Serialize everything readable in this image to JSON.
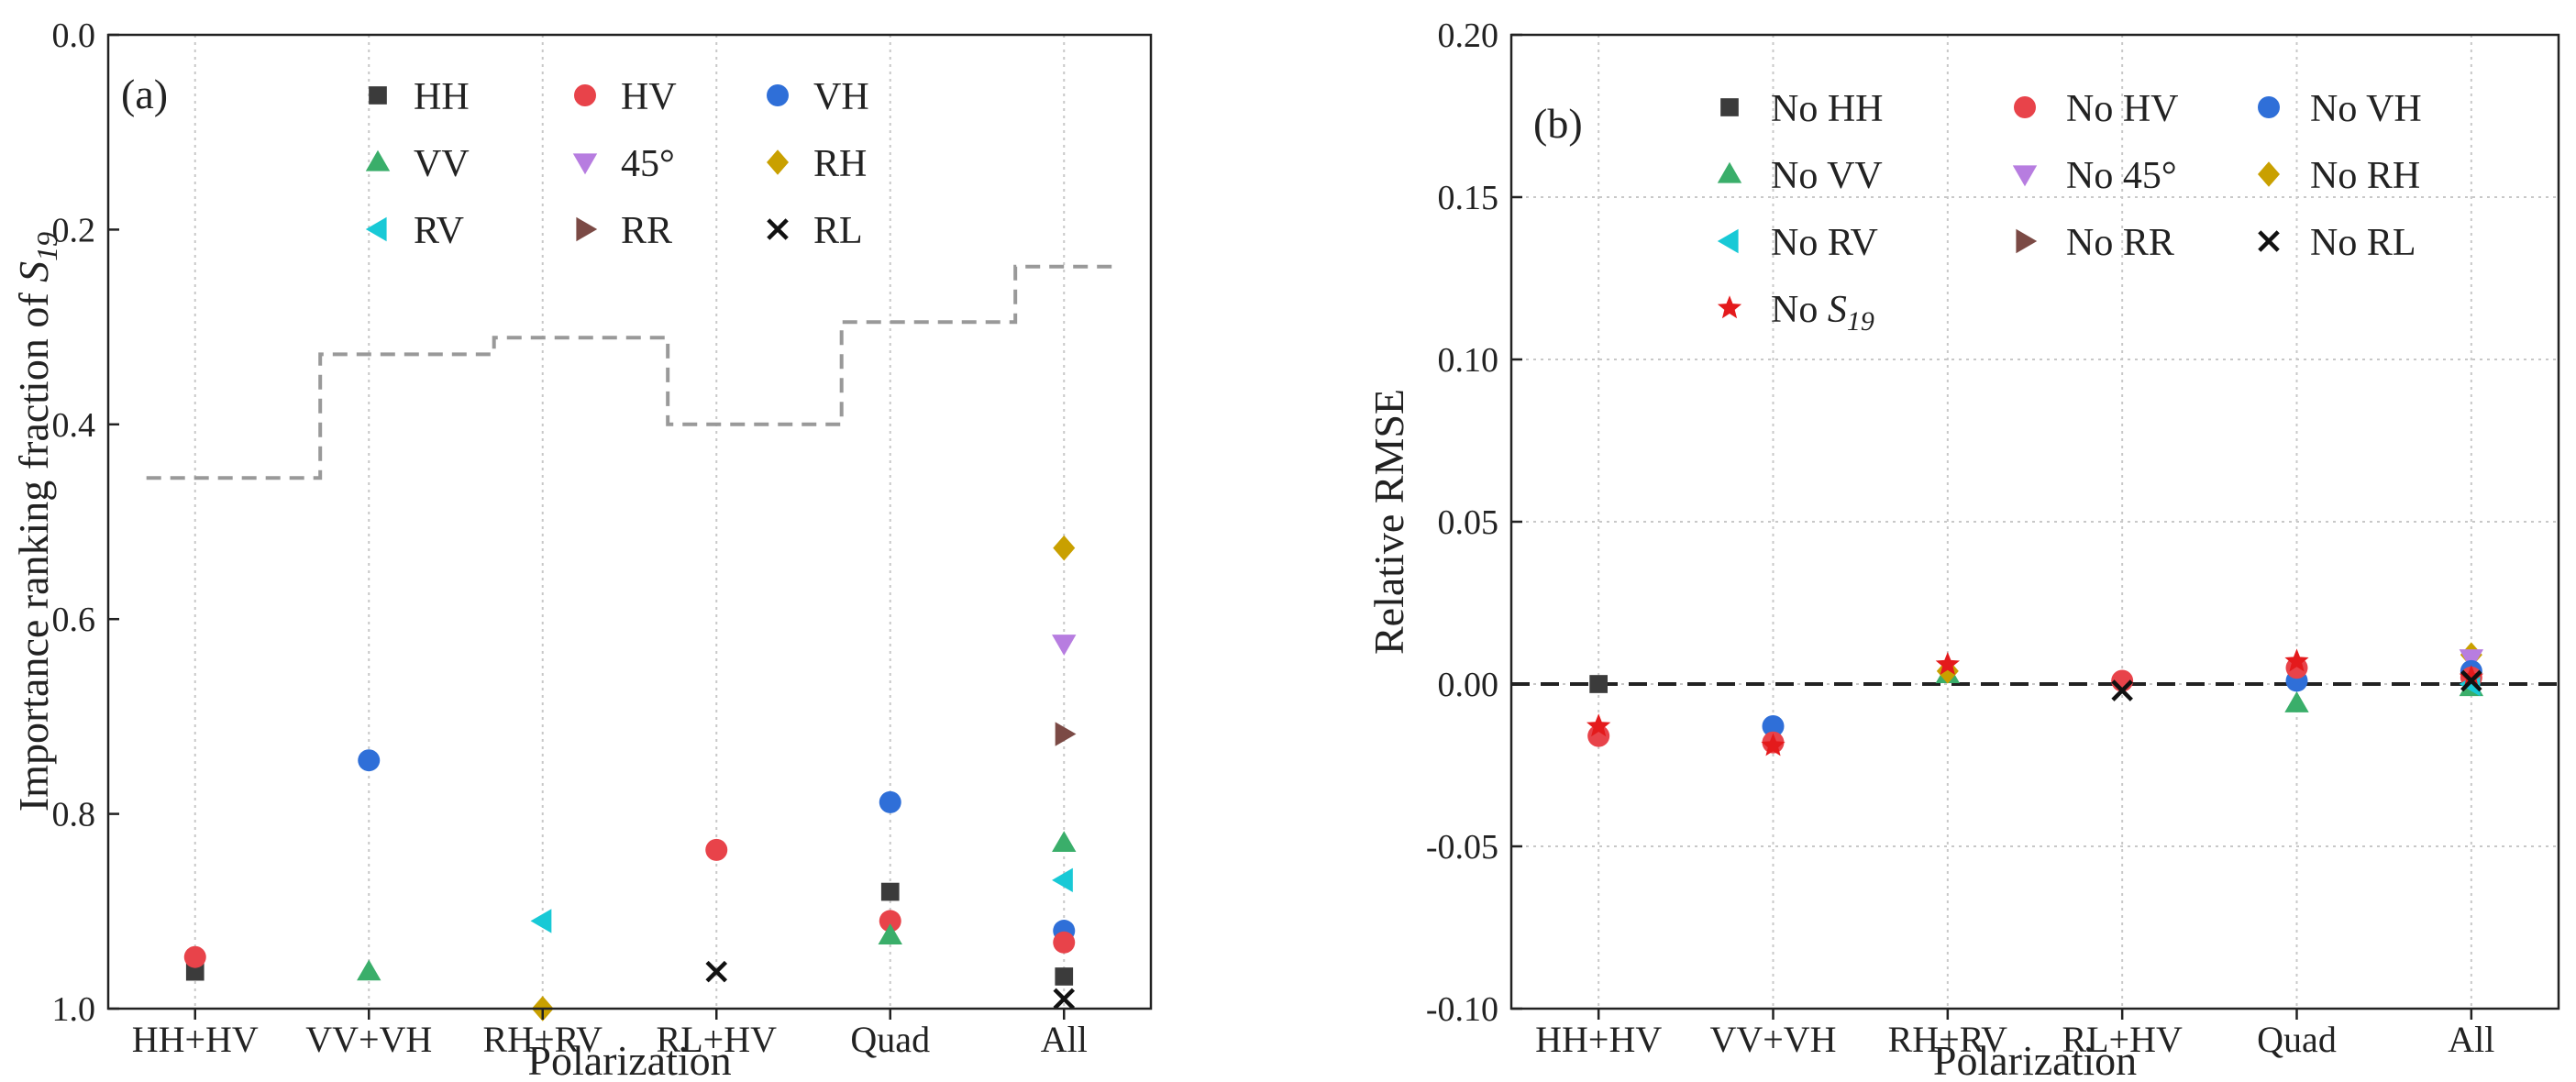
{
  "colors": {
    "HH": "#3b3b3b",
    "HV": "#e8434a",
    "VH": "#2f6fd8",
    "VV": "#3aae6a",
    "45": "#b77de0",
    "RH": "#c9a000",
    "RV": "#18c9d6",
    "RR": "#7b4a45",
    "RL": "#111111",
    "S19": "#e41a1c",
    "step": "#999999",
    "zero": "#222222",
    "grid": "#c8c8c8"
  },
  "chart_data": [
    {
      "type": "scatter",
      "panel_label": "(a)",
      "xlabel": "Polarization",
      "ylabel_main": "Importance ranking fraction of ",
      "ylabel_sym": "S",
      "ylabel_sub": "19",
      "categories": [
        "HH+HV",
        "VV+VH",
        "RH+RV",
        "RL+HV",
        "Quad",
        "All"
      ],
      "ylim": [
        1.0,
        0.0
      ],
      "y_inverted": true,
      "yticks": [
        0.0,
        0.2,
        0.4,
        0.6,
        0.8,
        1.0
      ],
      "ytick_labels": [
        "0.0",
        "0.2",
        "0.4",
        "0.6",
        "0.8",
        "1.0"
      ],
      "grid": "vertical dotted",
      "legend_position": "top-left",
      "legend": [
        {
          "key": "HH",
          "label": "HH",
          "marker": "square"
        },
        {
          "key": "HV",
          "label": "HV",
          "marker": "circle"
        },
        {
          "key": "VH",
          "label": "VH",
          "marker": "circle"
        },
        {
          "key": "VV",
          "label": "VV",
          "marker": "triangle-up"
        },
        {
          "key": "45",
          "label": "45°",
          "marker": "triangle-down"
        },
        {
          "key": "RH",
          "label": "RH",
          "marker": "diamond"
        },
        {
          "key": "RV",
          "label": "RV",
          "marker": "triangle-left"
        },
        {
          "key": "RR",
          "label": "RR",
          "marker": "triangle-right"
        },
        {
          "key": "RL",
          "label": "RL",
          "marker": "x"
        }
      ],
      "points": [
        {
          "key": "HH",
          "cat": 0,
          "y": 0.962
        },
        {
          "key": "HV",
          "cat": 0,
          "y": 0.947
        },
        {
          "key": "VV",
          "cat": 1,
          "y": 0.962
        },
        {
          "key": "VH",
          "cat": 1,
          "y": 0.745
        },
        {
          "key": "RV",
          "cat": 2,
          "y": 0.91
        },
        {
          "key": "RH",
          "cat": 2,
          "y": 1.0
        },
        {
          "key": "HV",
          "cat": 3,
          "y": 0.837
        },
        {
          "key": "RL",
          "cat": 3,
          "y": 0.962
        },
        {
          "key": "VH",
          "cat": 4,
          "y": 0.788
        },
        {
          "key": "HH",
          "cat": 4,
          "y": 0.88
        },
        {
          "key": "HV",
          "cat": 4,
          "y": 0.91
        },
        {
          "key": "VV",
          "cat": 4,
          "y": 0.925
        },
        {
          "key": "RH",
          "cat": 5,
          "y": 0.527
        },
        {
          "key": "45",
          "cat": 5,
          "y": 0.625
        },
        {
          "key": "RR",
          "cat": 5,
          "y": 0.718
        },
        {
          "key": "VV",
          "cat": 5,
          "y": 0.83
        },
        {
          "key": "RV",
          "cat": 5,
          "y": 0.868
        },
        {
          "key": "VH",
          "cat": 5,
          "y": 0.92
        },
        {
          "key": "HV",
          "cat": 5,
          "y": 0.932
        },
        {
          "key": "HH",
          "cat": 5,
          "y": 0.967
        },
        {
          "key": "RL",
          "cat": 5,
          "y": 0.99
        }
      ],
      "step_line": [
        {
          "cat": 0,
          "y": 0.455
        },
        {
          "cat": 1,
          "y": 0.328
        },
        {
          "cat": 2,
          "y": 0.311
        },
        {
          "cat": 3,
          "y": 0.4
        },
        {
          "cat": 4,
          "y": 0.295
        },
        {
          "cat": 5,
          "y": 0.238
        }
      ]
    },
    {
      "type": "scatter",
      "panel_label": "(b)",
      "xlabel": "Polarization",
      "ylabel": "Relative RMSE",
      "categories": [
        "HH+HV",
        "VV+VH",
        "RH+RV",
        "RL+HV",
        "Quad",
        "All"
      ],
      "ylim": [
        -0.1,
        0.2
      ],
      "yticks": [
        -0.1,
        -0.05,
        0.0,
        0.05,
        0.1,
        0.15,
        0.2
      ],
      "ytick_labels": [
        "-0.10",
        "-0.05",
        "0.00",
        "0.05",
        "0.10",
        "0.15",
        "0.20"
      ],
      "grid": "dotted",
      "reference_line": 0.0,
      "legend_position": "top-left",
      "legend": [
        {
          "key": "HH",
          "label": "No HH",
          "marker": "square"
        },
        {
          "key": "HV",
          "label": "No HV",
          "marker": "circle"
        },
        {
          "key": "VH",
          "label": "No VH",
          "marker": "circle"
        },
        {
          "key": "VV",
          "label": "No VV",
          "marker": "triangle-up"
        },
        {
          "key": "45",
          "label": "No 45°",
          "marker": "triangle-down"
        },
        {
          "key": "RH",
          "label": "No RH",
          "marker": "diamond"
        },
        {
          "key": "RV",
          "label": "No RV",
          "marker": "triangle-left"
        },
        {
          "key": "RR",
          "label": "No RR",
          "marker": "triangle-right"
        },
        {
          "key": "RL",
          "label": "No RL",
          "marker": "x"
        },
        {
          "key": "S19",
          "label": "No ",
          "label_sym": "S",
          "label_sub": "19",
          "marker": "star"
        }
      ],
      "points": [
        {
          "key": "HH",
          "cat": 0,
          "y": 0.0
        },
        {
          "key": "HV",
          "cat": 0,
          "y": -0.016
        },
        {
          "key": "S19",
          "cat": 0,
          "y": -0.013
        },
        {
          "key": "VH",
          "cat": 1,
          "y": -0.013
        },
        {
          "key": "HV",
          "cat": 1,
          "y": -0.018
        },
        {
          "key": "S19",
          "cat": 1,
          "y": -0.019
        },
        {
          "key": "VV",
          "cat": 2,
          "y": 0.003
        },
        {
          "key": "RH",
          "cat": 2,
          "y": 0.004
        },
        {
          "key": "S19",
          "cat": 2,
          "y": 0.006
        },
        {
          "key": "HV",
          "cat": 3,
          "y": 0.001
        },
        {
          "key": "RL",
          "cat": 3,
          "y": -0.002
        },
        {
          "key": "VV",
          "cat": 4,
          "y": -0.006
        },
        {
          "key": "VH",
          "cat": 4,
          "y": 0.001
        },
        {
          "key": "HV",
          "cat": 4,
          "y": 0.005
        },
        {
          "key": "S19",
          "cat": 4,
          "y": 0.007
        },
        {
          "key": "RH",
          "cat": 5,
          "y": 0.009
        },
        {
          "key": "45",
          "cat": 5,
          "y": 0.008
        },
        {
          "key": "VH",
          "cat": 5,
          "y": 0.004
        },
        {
          "key": "HV",
          "cat": 5,
          "y": 0.002
        },
        {
          "key": "VV",
          "cat": 5,
          "y": -0.001
        },
        {
          "key": "RV",
          "cat": 5,
          "y": 0.0
        },
        {
          "key": "S19",
          "cat": 5,
          "y": 0.002
        },
        {
          "key": "RL",
          "cat": 5,
          "y": 0.001
        }
      ]
    }
  ]
}
